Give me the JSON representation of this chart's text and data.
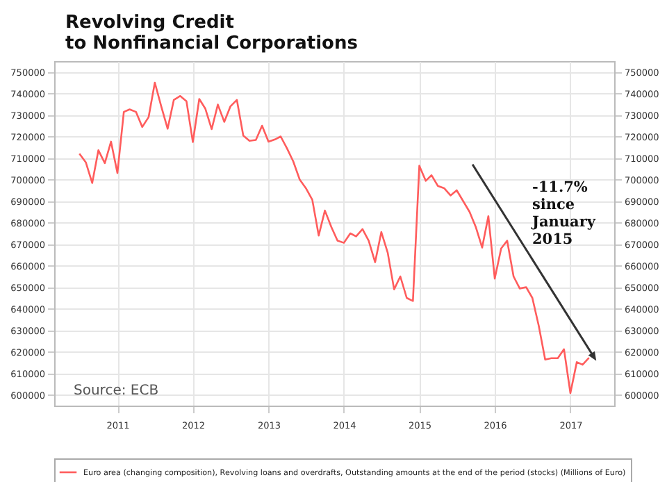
{
  "chart_data": {
    "type": "line",
    "title": "Revolving Credit\nto Nonfinancial Corporations",
    "x": [
      "2010-07",
      "2010-08",
      "2010-09",
      "2010-10",
      "2010-11",
      "2010-12",
      "2011-01",
      "2011-02",
      "2011-03",
      "2011-04",
      "2011-05",
      "2011-06",
      "2011-07",
      "2011-08",
      "2011-09",
      "2011-10",
      "2011-11",
      "2011-12",
      "2012-01",
      "2012-02",
      "2012-03",
      "2012-04",
      "2012-05",
      "2012-06",
      "2012-07",
      "2012-08",
      "2012-09",
      "2012-10",
      "2012-11",
      "2012-12",
      "2013-01",
      "2013-02",
      "2013-03",
      "2013-04",
      "2013-05",
      "2013-06",
      "2013-07",
      "2013-08",
      "2013-09",
      "2013-10",
      "2013-11",
      "2013-12",
      "2014-01",
      "2014-02",
      "2014-03",
      "2014-04",
      "2014-05",
      "2014-06",
      "2014-07",
      "2014-08",
      "2014-09",
      "2014-10",
      "2014-11",
      "2014-12",
      "2015-01",
      "2015-02",
      "2015-03",
      "2015-04",
      "2015-05",
      "2015-06",
      "2015-07",
      "2015-08",
      "2015-09",
      "2015-10",
      "2015-11",
      "2015-12",
      "2016-01",
      "2016-02",
      "2016-03",
      "2016-04",
      "2016-05",
      "2016-06",
      "2016-07",
      "2016-08",
      "2016-09",
      "2016-10",
      "2016-11",
      "2016-12",
      "2017-01",
      "2017-02",
      "2017-03",
      "2017-04"
    ],
    "series": [
      {
        "name": "Euro area (changing composition), Revolving loans and overdrafts, Outstanding amounts at the end of the period (stocks) (Millions of Euro)",
        "color": "#ff5c5c",
        "values": [
          712000,
          708000,
          698400,
          713600,
          707600,
          717600,
          703000,
          731400,
          732600,
          731400,
          724400,
          729000,
          745000,
          734000,
          723600,
          737000,
          738800,
          736400,
          717400,
          737400,
          733000,
          723400,
          734800,
          726800,
          734000,
          737000,
          720400,
          718000,
          718400,
          725000,
          717600,
          718600,
          720000,
          714400,
          708400,
          700000,
          696000,
          690600,
          674000,
          685600,
          678000,
          671600,
          670600,
          675000,
          673600,
          677000,
          671600,
          661600,
          675600,
          666000,
          649000,
          655000,
          645000,
          643600,
          706400,
          699400,
          702000,
          697000,
          696000,
          692600,
          695000,
          690000,
          685000,
          678000,
          668400,
          683000,
          654000,
          668000,
          671600,
          655000,
          649400,
          650000,
          645000,
          632000,
          616400,
          617000,
          617000,
          621200,
          600800,
          615200,
          614000,
          617200
        ]
      }
    ],
    "xlim": [
      "2010-03",
      "2017-08"
    ],
    "xticks": [
      "2011",
      "2012",
      "2013",
      "2014",
      "2015",
      "2016",
      "2017"
    ],
    "ylim": [
      595000,
      755000
    ],
    "yticks": [
      600000,
      610000,
      620000,
      630000,
      640000,
      650000,
      660000,
      670000,
      680000,
      690000,
      700000,
      710000,
      720000,
      730000,
      740000,
      750000
    ],
    "y2lim": [
      595000,
      755000
    ],
    "y2ticks": [
      600000,
      610000,
      620000,
      630000,
      640000,
      650000,
      660000,
      670000,
      680000,
      690000,
      700000,
      710000,
      720000,
      730000,
      740000,
      750000
    ],
    "annotations": [
      "-11.7% since January 2015",
      "Source: ECB"
    ],
    "grid": true,
    "legend": "bottom"
  }
}
